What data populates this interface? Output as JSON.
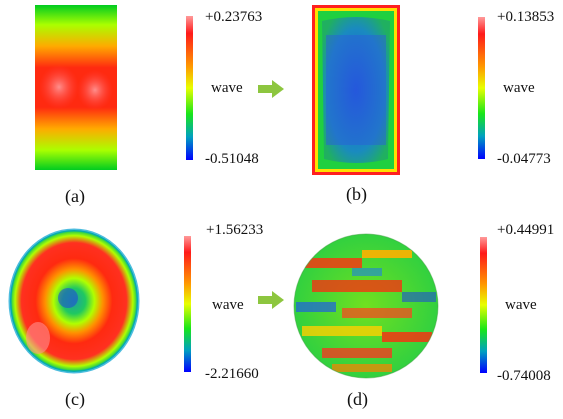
{
  "panels": [
    {
      "id": "a",
      "caption": "(a)",
      "max": "+0.23763",
      "unit": "wave",
      "min": "-0.51048"
    },
    {
      "id": "b",
      "caption": "(b)",
      "max": "+0.13853",
      "unit": "wave",
      "min": "-0.04773"
    },
    {
      "id": "c",
      "caption": "(c)",
      "max": "+1.56233",
      "unit": "wave",
      "min": "-2.21660"
    },
    {
      "id": "d",
      "caption": "(d)",
      "max": "+0.44991",
      "unit": "wave",
      "min": "-0.74008"
    }
  ],
  "colors": {
    "arrow": "#8dc63f",
    "colormap": [
      "#ff8080",
      "#ff0000",
      "#ff8000",
      "#ffff00",
      "#00ff00",
      "#00c080",
      "#0000ff"
    ]
  },
  "icons": [
    "right-arrow-icon"
  ]
}
